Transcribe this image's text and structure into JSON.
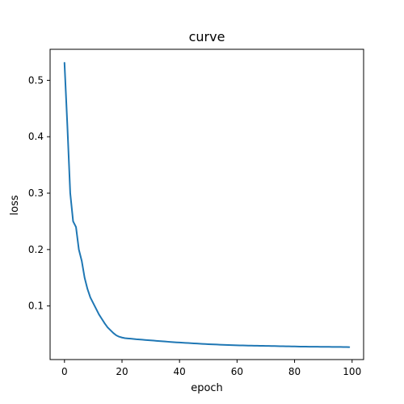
{
  "chart_data": {
    "type": "line",
    "title": "curve",
    "xlabel": "epoch",
    "ylabel": "loss",
    "xlim": [
      -5,
      104
    ],
    "ylim": [
      0.005,
      0.555
    ],
    "xticks": [
      0,
      20,
      40,
      60,
      80,
      100
    ],
    "yticks": [
      0.1,
      0.2,
      0.3,
      0.4,
      0.5
    ],
    "grid": false,
    "series": [
      {
        "color": "#1f77b4",
        "x": [
          0,
          1,
          2,
          3,
          4,
          5,
          6,
          7,
          8,
          9,
          10,
          11,
          12,
          13,
          14,
          15,
          16,
          17,
          18,
          19,
          20,
          21,
          22,
          23,
          24,
          25,
          26,
          27,
          28,
          29,
          30,
          31,
          32,
          33,
          34,
          35,
          36,
          37,
          38,
          39,
          40,
          41,
          42,
          43,
          44,
          45,
          46,
          47,
          48,
          49,
          50,
          51,
          52,
          53,
          54,
          55,
          56,
          57,
          58,
          59,
          60,
          61,
          62,
          63,
          64,
          65,
          66,
          67,
          68,
          69,
          70,
          71,
          72,
          73,
          74,
          75,
          76,
          77,
          78,
          79,
          80,
          81,
          82,
          83,
          84,
          85,
          86,
          87,
          88,
          89,
          90,
          91,
          92,
          93,
          94,
          95,
          96,
          97,
          98,
          99
        ],
        "y": [
          0.531,
          0.42,
          0.3,
          0.25,
          0.24,
          0.2,
          0.18,
          0.15,
          0.13,
          0.115,
          0.105,
          0.095,
          0.085,
          0.077,
          0.069,
          0.062,
          0.057,
          0.052,
          0.048,
          0.0455,
          0.044,
          0.043,
          0.0425,
          0.042,
          0.0415,
          0.041,
          0.0406,
          0.0402,
          0.0398,
          0.0394,
          0.039,
          0.0386,
          0.0382,
          0.0378,
          0.0374,
          0.037,
          0.0366,
          0.0362,
          0.0358,
          0.0355,
          0.0352,
          0.0349,
          0.0346,
          0.0343,
          0.034,
          0.0337,
          0.0334,
          0.0331,
          0.0328,
          0.0325,
          0.0322,
          0.032,
          0.0318,
          0.0316,
          0.0314,
          0.0312,
          0.031,
          0.0308,
          0.0306,
          0.0304,
          0.0302,
          0.0301,
          0.03,
          0.0299,
          0.0298,
          0.0297,
          0.0296,
          0.0295,
          0.0294,
          0.0293,
          0.0292,
          0.0291,
          0.029,
          0.0289,
          0.0288,
          0.0287,
          0.0286,
          0.0285,
          0.0284,
          0.0283,
          0.0282,
          0.0281,
          0.028,
          0.0279,
          0.0279,
          0.0278,
          0.0278,
          0.0277,
          0.0277,
          0.0276,
          0.0276,
          0.0275,
          0.0275,
          0.0274,
          0.0274,
          0.0273,
          0.0273,
          0.0272,
          0.0272,
          0.0271
        ]
      }
    ]
  }
}
